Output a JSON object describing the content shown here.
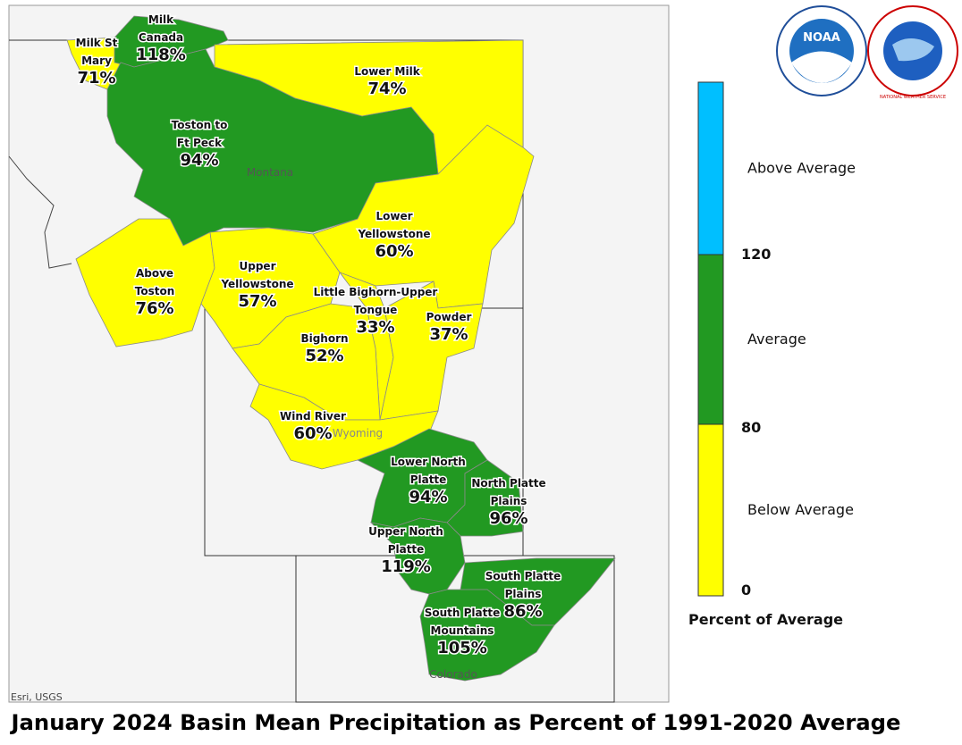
{
  "title": "January 2024 Basin Mean Precipitation as Percent of 1991-2020 Average",
  "attribution": "Esri, USGS",
  "logos": [
    "NOAA",
    "NATIONAL WEATHER SERVICE"
  ],
  "states": [
    "Montana",
    "Wyoming",
    "Colorado"
  ],
  "basins": [
    {
      "name": [
        "Milk St",
        "Mary"
      ],
      "percent": "71%",
      "color": "#ffff00"
    },
    {
      "name": [
        "Milk",
        "Canada"
      ],
      "percent": "118%",
      "color": "#229922"
    },
    {
      "name": [
        "Lower Milk"
      ],
      "percent": "74%",
      "color": "#ffff00"
    },
    {
      "name": [
        "Toston to",
        "Ft Peck"
      ],
      "percent": "94%",
      "color": "#229922"
    },
    {
      "name": [
        "Lower",
        "Yellowstone"
      ],
      "percent": "60%",
      "color": "#ffff00"
    },
    {
      "name": [
        "Above",
        "Toston"
      ],
      "percent": "76%",
      "color": "#ffff00"
    },
    {
      "name": [
        "Upper",
        "Yellowstone"
      ],
      "percent": "57%",
      "color": "#ffff00"
    },
    {
      "name": [
        "Little Bighorn-Upper",
        "Tongue"
      ],
      "percent": "33%",
      "color": "#ffff00"
    },
    {
      "name": [
        "Powder"
      ],
      "percent": "37%",
      "color": "#ffff00"
    },
    {
      "name": [
        "Bighorn"
      ],
      "percent": "52%",
      "color": "#ffff00"
    },
    {
      "name": [
        "Wind River"
      ],
      "percent": "60%",
      "color": "#ffff00"
    },
    {
      "name": [
        "Lower North",
        "Platte"
      ],
      "percent": "94%",
      "color": "#229922"
    },
    {
      "name": [
        "North Platte",
        "Plains"
      ],
      "percent": "96%",
      "color": "#229922"
    },
    {
      "name": [
        "Upper North",
        "Platte"
      ],
      "percent": "119%",
      "color": "#229922"
    },
    {
      "name": [
        "South Platte",
        "Plains"
      ],
      "percent": "86%",
      "color": "#229922"
    },
    {
      "name": [
        "South Platte",
        "Mountains"
      ],
      "percent": "105%",
      "color": "#229922"
    }
  ],
  "legend": {
    "title": "Percent of Average",
    "classes": [
      {
        "label": "Above Average",
        "color": "#00bfff"
      },
      {
        "label": "Average",
        "color": "#229922"
      },
      {
        "label": "Below Average",
        "color": "#ffff00"
      }
    ],
    "ticks": [
      120,
      80,
      0
    ]
  }
}
